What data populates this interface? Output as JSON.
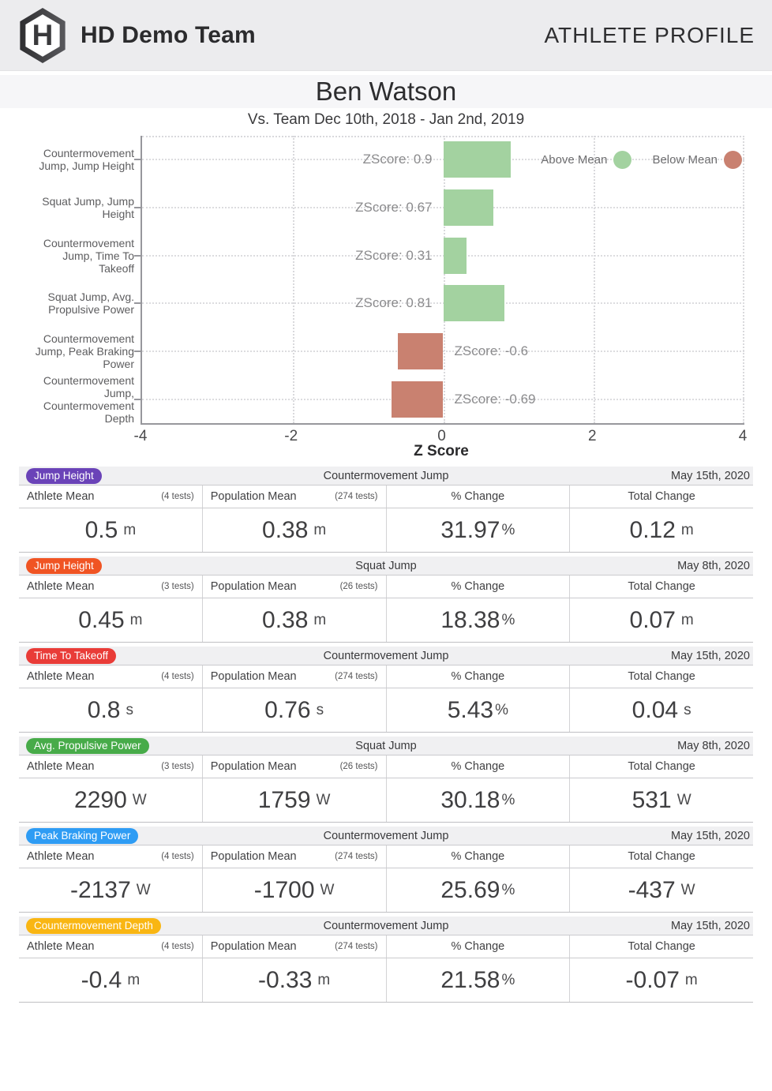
{
  "header": {
    "team_name": "HD Demo Team",
    "page_title": "ATHLETE PROFILE",
    "logo_letter": "H"
  },
  "athlete": {
    "name": "Ben Watson",
    "comparison": "Vs. Team Dec 10th, 2018 - Jan 2nd, 2019"
  },
  "chart_data": {
    "type": "bar",
    "orientation": "horizontal",
    "xlabel": "Z Score",
    "xlim": [
      -4,
      4
    ],
    "x_ticks": [
      "-4",
      "-2",
      "0",
      "2",
      "4"
    ],
    "grid": "dotted",
    "legend_position": "top-right",
    "categories": [
      "Countermovement Jump, Jump Height",
      "Squat Jump, Jump Height",
      "Countermovement Jump, Time To Takeoff",
      "Squat Jump, Avg. Propulsive Power",
      "Countermovement Jump, Peak Braking Power",
      "Countermovement Jump, Countermovement Depth"
    ],
    "values": [
      0.9,
      0.67,
      0.31,
      0.81,
      -0.6,
      -0.69
    ],
    "bar_labels": [
      "ZScore: 0.9",
      "ZScore: 0.67",
      "ZScore: 0.31",
      "ZScore: 0.81",
      "ZScore: -0.6",
      "ZScore: -0.69"
    ],
    "colors": {
      "above_mean": "#a3d2a0",
      "below_mean": "#c98170"
    },
    "legend": [
      {
        "label": "Above Mean",
        "color": "#a3d2a0"
      },
      {
        "label": "Below Mean",
        "color": "#c98170"
      }
    ]
  },
  "tables": {
    "column_headers": {
      "athlete_mean": "Athlete Mean",
      "population_mean": "Population Mean",
      "percent_change": "% Change",
      "total_change": "Total Change"
    },
    "percent_unit": "%",
    "metrics": [
      {
        "badge_label": "Jump Height",
        "badge_color": "#6a43b8",
        "test_type": "Countermovement Jump",
        "date": "May 15th, 2020",
        "athlete_tests": "(4 tests)",
        "population_tests": "(274 tests)",
        "unit": "m",
        "athlete_mean": "0.5",
        "population_mean": "0.38",
        "percent_change": "31.97",
        "total_change": "0.12"
      },
      {
        "badge_label": "Jump Height",
        "badge_color": "#f05423",
        "test_type": "Squat Jump",
        "date": "May 8th, 2020",
        "athlete_tests": "(3 tests)",
        "population_tests": "(26 tests)",
        "unit": "m",
        "athlete_mean": "0.45",
        "population_mean": "0.38",
        "percent_change": "18.38",
        "total_change": "0.07"
      },
      {
        "badge_label": "Time To Takeoff",
        "badge_color": "#e93c38",
        "test_type": "Countermovement Jump",
        "date": "May 15th, 2020",
        "athlete_tests": "(4 tests)",
        "population_tests": "(274 tests)",
        "unit": "s",
        "athlete_mean": "0.8",
        "population_mean": "0.76",
        "percent_change": "5.43",
        "total_change": "0.04"
      },
      {
        "badge_label": "Avg. Propulsive Power",
        "badge_color": "#47ab49",
        "test_type": "Squat Jump",
        "date": "May 8th, 2020",
        "athlete_tests": "(3 tests)",
        "population_tests": "(26 tests)",
        "unit": "W",
        "athlete_mean": "2290",
        "population_mean": "1759",
        "percent_change": "30.18",
        "total_change": "531"
      },
      {
        "badge_label": "Peak Braking Power",
        "badge_color": "#2e9cf4",
        "test_type": "Countermovement Jump",
        "date": "May 15th, 2020",
        "athlete_tests": "(4 tests)",
        "population_tests": "(274 tests)",
        "unit": "W",
        "athlete_mean": "-2137",
        "population_mean": "-1700",
        "percent_change": "25.69",
        "total_change": "-437"
      },
      {
        "badge_label": "Countermovement Depth",
        "badge_color": "#f9b613",
        "test_type": "Countermovement Jump",
        "date": "May 15th, 2020",
        "athlete_tests": "(4 tests)",
        "population_tests": "(274 tests)",
        "unit": "m",
        "athlete_mean": "-0.4",
        "population_mean": "-0.33",
        "percent_change": "21.58",
        "total_change": "-0.07"
      }
    ]
  }
}
